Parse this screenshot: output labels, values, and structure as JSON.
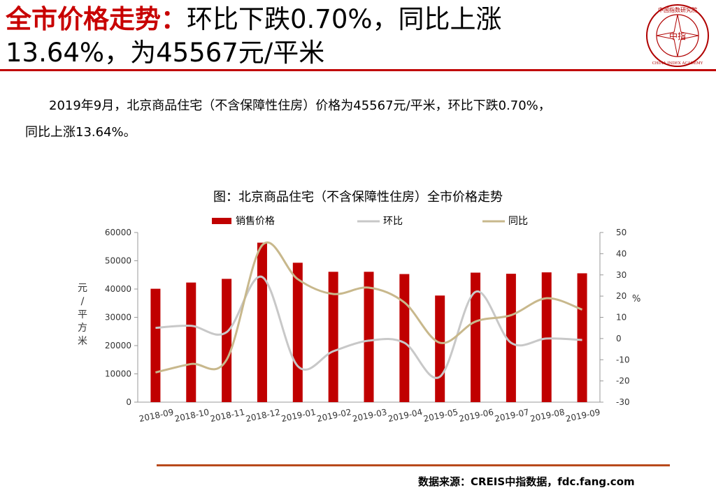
{
  "header": {
    "title_red": "全市价格走势：",
    "title_rest": "环比下跌0.70%，同比上涨",
    "title_line2": "13.64%，为45567元/平米",
    "logo_text": "中国指数研究院",
    "logo_en": "CHINA INDEX ACADEMY",
    "logo_center": "中指"
  },
  "paragraph": {
    "line1": "2019年9月，北京商品住宅（不含保障性住房）价格为45567元/平米，环比下跌0.70%，",
    "line2": "同比上涨13.64%。"
  },
  "source": "数据来源：CREIS中指数据，fdc.fang.com",
  "chart_data": {
    "type": "bar",
    "title": "图：北京商品住宅（不含保障性住房）全市价格走势",
    "categories": [
      "2018-09",
      "2018-10",
      "2018-11",
      "2018-12",
      "2019-01",
      "2019-02",
      "2019-03",
      "2019-04",
      "2019-05",
      "2019-06",
      "2019-07",
      "2019-08",
      "2019-09"
    ],
    "series": [
      {
        "name": "销售价格",
        "type": "bar",
        "axis": "left",
        "color": "#c00000",
        "values": [
          40100,
          42300,
          43600,
          56400,
          49300,
          46100,
          46100,
          45300,
          37700,
          45800,
          45400,
          45900,
          45567
        ]
      },
      {
        "name": "环比",
        "type": "line",
        "axis": "right",
        "color": "#c8c8c8",
        "values": [
          5,
          6,
          3,
          29,
          -13,
          -6,
          -1,
          -2,
          -18,
          22,
          -2,
          0,
          -0.7
        ]
      },
      {
        "name": "同比",
        "type": "line",
        "axis": "right",
        "color": "#c8b88c",
        "values": [
          -16,
          -12,
          -10,
          44,
          28,
          21,
          24,
          17,
          -2,
          8,
          11,
          19,
          13.64
        ]
      }
    ],
    "ylabel": "元/平方米",
    "y2label": "%",
    "ylim": [
      0,
      60000
    ],
    "y2lim": [
      -30,
      50
    ],
    "yticks": [
      "0",
      "10000",
      "20000",
      "30000",
      "40000",
      "50000",
      "60000"
    ],
    "y2ticks": [
      "-30",
      "-20",
      "-10",
      "0",
      "10",
      "20",
      "30",
      "40",
      "50"
    ],
    "legend_position": "top",
    "grid": false
  }
}
